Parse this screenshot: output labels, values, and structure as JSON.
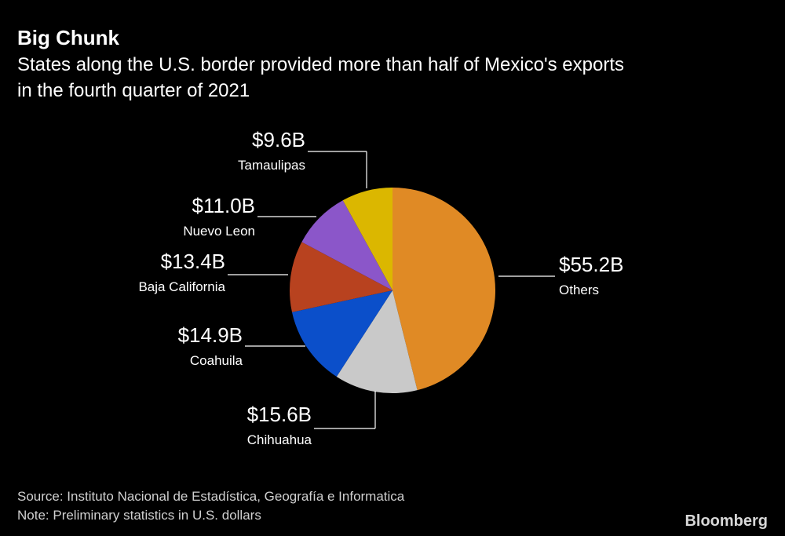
{
  "chart_data": {
    "type": "pie",
    "title": "Big Chunk",
    "subtitle": [
      "States along the U.S. border provided more than half of Mexico's exports",
      "in the fourth quarter of 2021"
    ],
    "categories": [
      "Others",
      "Chihuahua",
      "Coahuila",
      "Baja California",
      "Nuevo Leon",
      "Tamaulipas"
    ],
    "values": [
      55.2,
      15.6,
      14.9,
      13.4,
      11.0,
      9.6
    ],
    "value_labels": [
      "$55.2B",
      "$15.6B",
      "$14.9B",
      "$13.4B",
      "$11.0B",
      "$9.6B"
    ],
    "colors": [
      "#e08a25",
      "#c9c9c9",
      "#0b4fca",
      "#b8421f",
      "#8b56c9",
      "#dbb700"
    ],
    "source": "Source: Instituto Nacional de Estadística, Geografía e Informatica",
    "note": "Note: Preliminary statistics in U.S. dollars",
    "brand": "Bloomberg"
  }
}
